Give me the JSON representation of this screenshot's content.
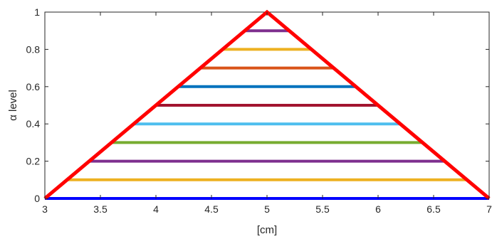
{
  "chart_data": {
    "type": "line",
    "title": "",
    "xlabel": "[cm]",
    "ylabel": "α level",
    "xlim": [
      3,
      7
    ],
    "ylim": [
      0,
      1
    ],
    "grid": false,
    "xticks": [
      3,
      3.5,
      4,
      4.5,
      5,
      5.5,
      6,
      6.5,
      7
    ],
    "xtick_labels": [
      "3",
      "3.5",
      "4",
      "4.5",
      "5",
      "5.5",
      "6",
      "6.5",
      "7"
    ],
    "yticks": [
      0,
      0.2,
      0.4,
      0.6,
      0.8,
      1
    ],
    "ytick_labels": [
      "0",
      "0.2",
      "0.4",
      "0.6",
      "0.8",
      "1"
    ],
    "membership_function": {
      "x": [
        3,
        5,
        7
      ],
      "y": [
        0,
        1,
        0
      ],
      "color": "#ff0000"
    },
    "alpha_cuts": [
      {
        "alpha": 0.0,
        "x": [
          3.0,
          7.0
        ],
        "color": "#0000ff"
      },
      {
        "alpha": 0.1,
        "x": [
          3.2,
          6.8
        ],
        "color": "#edb120"
      },
      {
        "alpha": 0.2,
        "x": [
          3.4,
          6.6
        ],
        "color": "#7e2f8e"
      },
      {
        "alpha": 0.3,
        "x": [
          3.6,
          6.4
        ],
        "color": "#77ac30"
      },
      {
        "alpha": 0.4,
        "x": [
          3.8,
          6.2
        ],
        "color": "#4dbeee"
      },
      {
        "alpha": 0.5,
        "x": [
          4.0,
          6.0
        ],
        "color": "#a2142f"
      },
      {
        "alpha": 0.6,
        "x": [
          4.2,
          5.8
        ],
        "color": "#0072bd"
      },
      {
        "alpha": 0.7,
        "x": [
          4.4,
          5.6
        ],
        "color": "#d95319"
      },
      {
        "alpha": 0.8,
        "x": [
          4.6,
          5.4
        ],
        "color": "#edb120"
      },
      {
        "alpha": 0.9,
        "x": [
          4.8,
          5.2
        ],
        "color": "#7e2f8e"
      }
    ]
  }
}
